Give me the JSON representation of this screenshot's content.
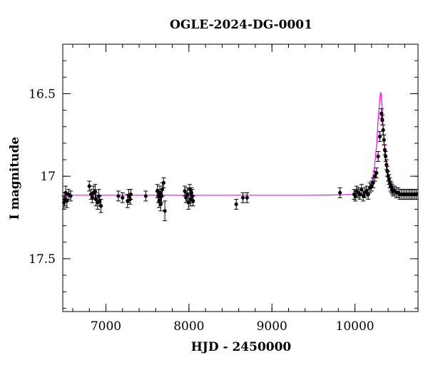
{
  "chart_data": {
    "type": "scatter",
    "title": "OGLE-2024-DG-0001",
    "xlabel": "HJD - 2450000",
    "ylabel": "I magnitude",
    "xlim": [
      6480,
      10760
    ],
    "ylim": [
      17.82,
      16.2
    ],
    "y_inverted": true,
    "x_ticks": [
      7000,
      8000,
      9000,
      10000
    ],
    "y_ticks": [
      16.5,
      17,
      17.5
    ],
    "grid": false,
    "colors": {
      "points": "#000000",
      "model": "#ff00ff"
    },
    "series": [
      {
        "kind": "points_with_errorbars",
        "x": [
          6495,
          6505,
          6515,
          6530,
          6550,
          6575,
          6800,
          6820,
          6835,
          6850,
          6870,
          6880,
          6900,
          6915,
          6925,
          6940,
          7150,
          7200,
          7260,
          7275,
          7290,
          7300,
          7480,
          7620,
          7630,
          7640,
          7650,
          7660,
          7670,
          7680,
          7695,
          7710,
          7950,
          7965,
          7980,
          7995,
          8010,
          8020,
          8030,
          8040,
          8050,
          8570,
          8650,
          8700,
          9820,
          9990,
          10005,
          10020,
          10040,
          10060,
          10080,
          10100,
          10120,
          10140,
          10160,
          10180,
          10200,
          10220,
          10240,
          10260,
          10280,
          10300,
          10320,
          10330,
          10340,
          10350,
          10360,
          10370,
          10380,
          10390,
          10400,
          10410,
          10420,
          10430,
          10440,
          10450,
          10460,
          10480,
          10500,
          10520,
          10540,
          10560,
          10580,
          10600,
          10620,
          10640,
          10660,
          10680,
          10700,
          10720,
          10740
        ],
        "y": [
          17.16,
          17.14,
          17.1,
          17.15,
          17.11,
          17.12,
          17.06,
          17.11,
          17.13,
          17.1,
          17.09,
          17.14,
          17.16,
          17.12,
          17.15,
          17.18,
          17.12,
          17.13,
          17.15,
          17.12,
          17.14,
          17.11,
          17.12,
          17.09,
          17.12,
          17.15,
          17.1,
          17.17,
          17.12,
          17.08,
          17.04,
          17.21,
          17.09,
          17.13,
          17.11,
          17.16,
          17.08,
          17.14,
          17.1,
          17.12,
          17.15,
          17.17,
          17.13,
          17.13,
          17.1,
          17.11,
          17.12,
          17.09,
          17.1,
          17.11,
          17.08,
          17.12,
          17.1,
          17.09,
          17.11,
          17.07,
          17.06,
          17.04,
          17.0,
          16.98,
          16.88,
          16.76,
          16.62,
          16.66,
          16.72,
          16.78,
          16.84,
          16.88,
          16.93,
          16.97,
          17.0,
          17.02,
          17.04,
          17.06,
          17.07,
          17.08,
          17.09,
          17.09,
          17.1,
          17.1,
          17.11,
          17.11,
          17.11,
          17.11,
          17.11,
          17.11,
          17.11,
          17.11,
          17.11,
          17.11,
          17.11
        ],
        "err": [
          0.04,
          0.04,
          0.04,
          0.04,
          0.03,
          0.03,
          0.03,
          0.03,
          0.03,
          0.04,
          0.04,
          0.04,
          0.04,
          0.04,
          0.03,
          0.04,
          0.03,
          0.03,
          0.04,
          0.04,
          0.03,
          0.03,
          0.03,
          0.04,
          0.04,
          0.04,
          0.04,
          0.04,
          0.04,
          0.04,
          0.03,
          0.06,
          0.03,
          0.03,
          0.04,
          0.04,
          0.03,
          0.04,
          0.03,
          0.04,
          0.03,
          0.03,
          0.03,
          0.03,
          0.03,
          0.03,
          0.03,
          0.03,
          0.03,
          0.03,
          0.03,
          0.03,
          0.03,
          0.03,
          0.03,
          0.03,
          0.03,
          0.03,
          0.03,
          0.03,
          0.03,
          0.03,
          0.03,
          0.03,
          0.03,
          0.03,
          0.03,
          0.03,
          0.03,
          0.03,
          0.03,
          0.03,
          0.03,
          0.03,
          0.03,
          0.03,
          0.03,
          0.03,
          0.03,
          0.03,
          0.03,
          0.03,
          0.03,
          0.03,
          0.03,
          0.03,
          0.03,
          0.03,
          0.03,
          0.03,
          0.03
        ]
      },
      {
        "kind": "model_curve",
        "x": [
          6480,
          7000,
          7500,
          8000,
          8500,
          9000,
          9500,
          9700,
          9800,
          9900,
          9950,
          10000,
          10050,
          10100,
          10150,
          10200,
          10230,
          10260,
          10280,
          10300,
          10310,
          10320,
          10330,
          10340,
          10350,
          10360,
          10380,
          10400,
          10420,
          10440,
          10460,
          10480,
          10500,
          10530,
          10560,
          10600,
          10650,
          10700,
          10760
        ],
        "y": [
          17.115,
          17.115,
          17.115,
          17.115,
          17.115,
          17.115,
          17.115,
          17.114,
          17.113,
          17.112,
          17.111,
          17.109,
          17.105,
          17.098,
          17.085,
          17.04,
          16.97,
          16.82,
          16.66,
          16.53,
          16.49,
          16.52,
          16.6,
          16.7,
          16.79,
          16.86,
          16.95,
          17.0,
          17.03,
          17.05,
          17.07,
          17.08,
          17.09,
          17.1,
          17.105,
          17.11,
          17.112,
          17.113,
          17.114
        ]
      }
    ]
  }
}
